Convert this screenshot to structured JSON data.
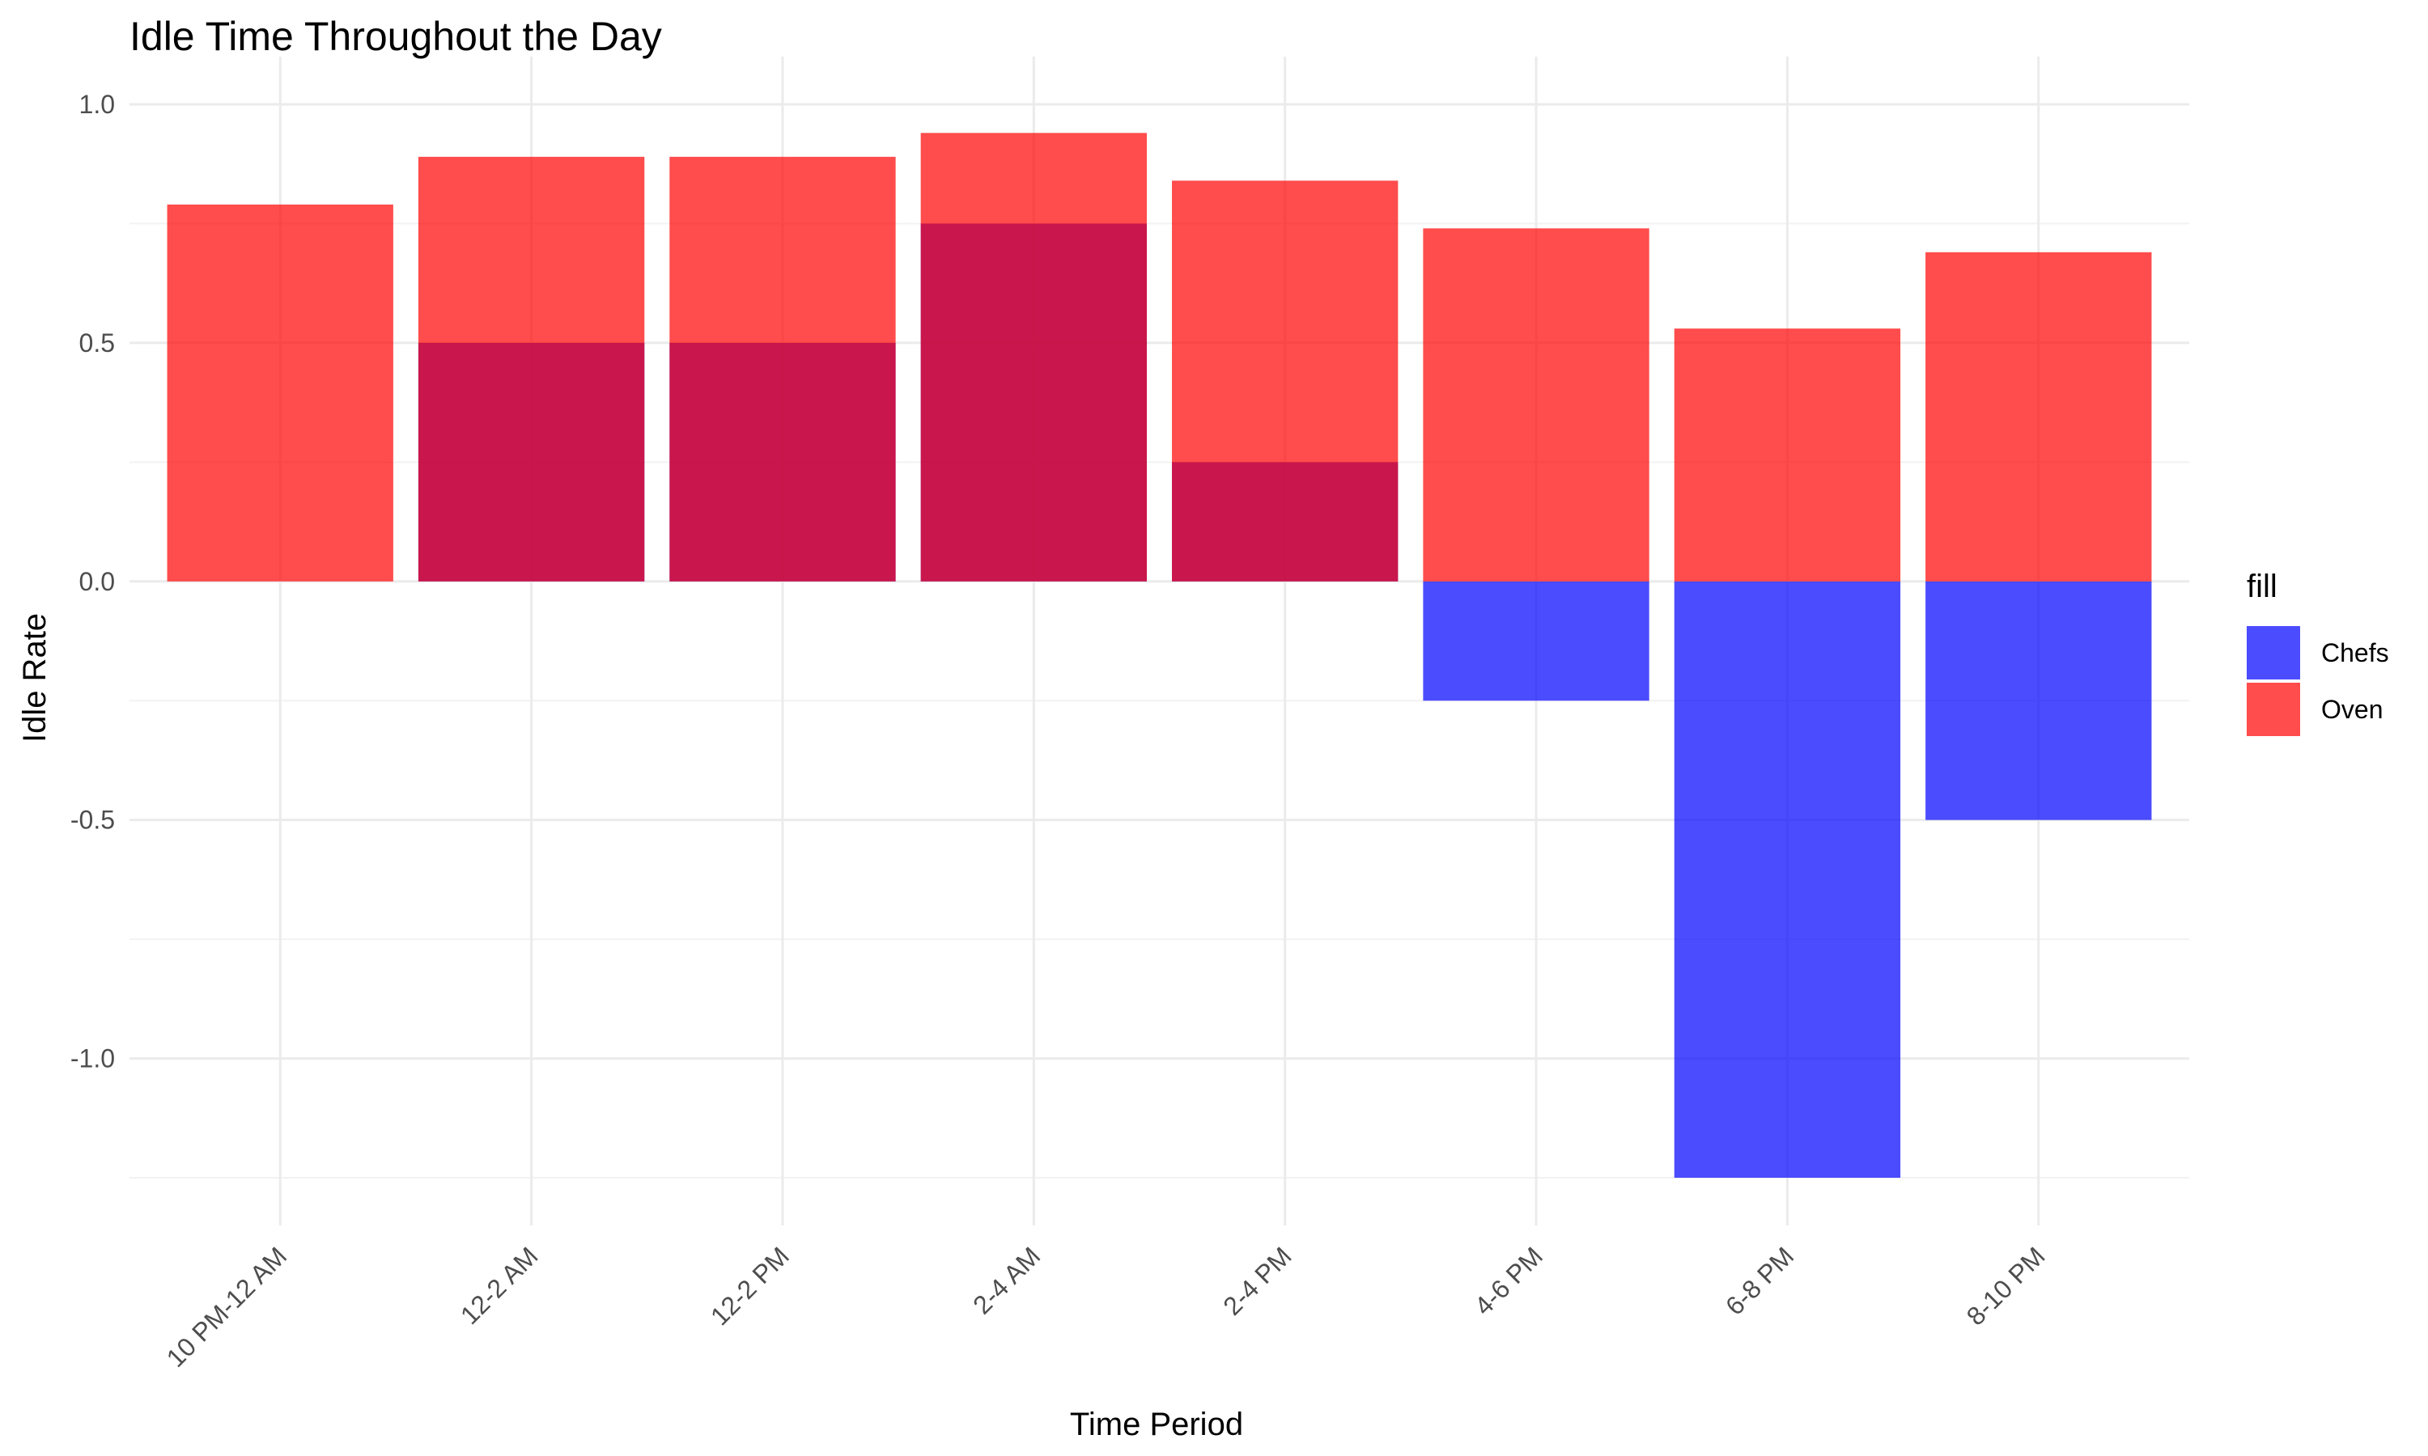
{
  "chart_data": {
    "type": "bar",
    "title": "Idle Time Throughout the Day",
    "xlabel": "Time Period",
    "ylabel": "Idle Rate",
    "categories": [
      "10 PM-12 AM",
      "12-2 AM",
      "12-2 PM",
      "2-4 AM",
      "2-4 PM",
      "4-6 PM",
      "6-8 PM",
      "8-10 PM"
    ],
    "series": [
      {
        "name": "Chefs",
        "color": "#0000ff",
        "values": [
          0,
          0.5,
          0.5,
          0.75,
          0.25,
          -0.25,
          -1.25,
          -0.5
        ]
      },
      {
        "name": "Oven",
        "color": "#ff0000",
        "values": [
          0.79,
          0.89,
          0.89,
          0.94,
          0.84,
          0.74,
          0.53,
          0.69
        ]
      }
    ],
    "bar_opacity": 0.7,
    "position": "overlay",
    "ylim": [
      -1.35,
      1.1
    ],
    "yticks": [
      -1.0,
      -0.5,
      0.0,
      0.5,
      1.0
    ],
    "ytick_labels": [
      "-1.0",
      "-0.5",
      "0.0",
      "0.5",
      "1.0"
    ],
    "grid": true,
    "legend": {
      "title": "fill",
      "placement": "right",
      "entries": [
        "Chefs",
        "Oven"
      ]
    }
  }
}
